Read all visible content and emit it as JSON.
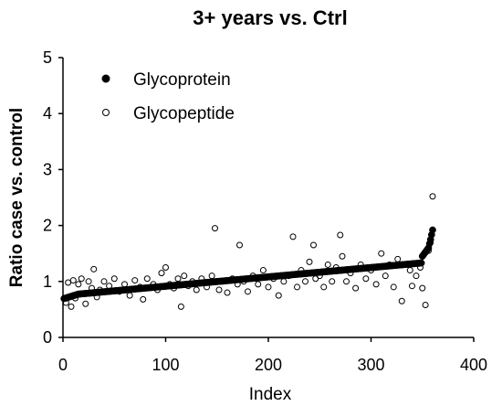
{
  "chart_data": {
    "type": "scatter",
    "title": "3+ years vs. Ctrl",
    "xlabel": "Index",
    "ylabel": "Ratio case vs. control",
    "xlim": [
      0,
      400
    ],
    "ylim": [
      0,
      5
    ],
    "x_ticks": [
      0,
      100,
      200,
      300,
      400
    ],
    "y_ticks": [
      0,
      1,
      2,
      3,
      4,
      5
    ],
    "grid": false,
    "legend_position": "top-left",
    "series": [
      {
        "name": "Glycoprotein",
        "marker": "filled-circle",
        "color": "#000000",
        "n_points": 360,
        "y_start": 0.75,
        "y_end": 1.33,
        "tail": [
          [
            350,
            1.45
          ],
          [
            352,
            1.5
          ],
          [
            354,
            1.55
          ],
          [
            356,
            1.6
          ],
          [
            358,
            1.75
          ],
          [
            360,
            1.92
          ]
        ]
      },
      {
        "name": "Glycopeptide",
        "marker": "open-circle",
        "color": "#000000",
        "points": [
          [
            3,
            0.62
          ],
          [
            5,
            0.98
          ],
          [
            8,
            0.55
          ],
          [
            10,
            1.02
          ],
          [
            12,
            0.7
          ],
          [
            15,
            0.95
          ],
          [
            18,
            1.05
          ],
          [
            20,
            0.78
          ],
          [
            22,
            0.6
          ],
          [
            25,
            1.0
          ],
          [
            28,
            0.88
          ],
          [
            30,
            1.22
          ],
          [
            33,
            0.72
          ],
          [
            36,
            0.85
          ],
          [
            40,
            1.0
          ],
          [
            45,
            0.92
          ],
          [
            50,
            1.05
          ],
          [
            55,
            0.82
          ],
          [
            60,
            0.95
          ],
          [
            65,
            0.75
          ],
          [
            70,
            1.02
          ],
          [
            75,
            0.9
          ],
          [
            78,
            0.68
          ],
          [
            82,
            1.05
          ],
          [
            88,
            0.95
          ],
          [
            92,
            0.85
          ],
          [
            96,
            1.15
          ],
          [
            100,
            1.25
          ],
          [
            104,
            0.95
          ],
          [
            108,
            0.88
          ],
          [
            112,
            1.05
          ],
          [
            115,
            0.55
          ],
          [
            118,
            1.1
          ],
          [
            122,
            0.92
          ],
          [
            126,
            1.0
          ],
          [
            130,
            0.85
          ],
          [
            135,
            1.05
          ],
          [
            140,
            0.9
          ],
          [
            145,
            1.1
          ],
          [
            148,
            1.95
          ],
          [
            152,
            0.85
          ],
          [
            156,
            1.0
          ],
          [
            160,
            0.8
          ],
          [
            165,
            1.05
          ],
          [
            170,
            0.95
          ],
          [
            172,
            1.65
          ],
          [
            176,
            1.0
          ],
          [
            180,
            0.82
          ],
          [
            185,
            1.1
          ],
          [
            190,
            0.95
          ],
          [
            195,
            1.2
          ],
          [
            200,
            0.9
          ],
          [
            205,
            1.05
          ],
          [
            210,
            0.75
          ],
          [
            215,
            1.0
          ],
          [
            220,
            1.1
          ],
          [
            224,
            1.8
          ],
          [
            228,
            0.9
          ],
          [
            232,
            1.2
          ],
          [
            236,
            1.0
          ],
          [
            240,
            1.35
          ],
          [
            244,
            1.65
          ],
          [
            246,
            1.05
          ],
          [
            250,
            1.1
          ],
          [
            254,
            0.9
          ],
          [
            258,
            1.3
          ],
          [
            262,
            1.0
          ],
          [
            266,
            1.25
          ],
          [
            270,
            1.83
          ],
          [
            272,
            1.45
          ],
          [
            276,
            1.0
          ],
          [
            280,
            1.15
          ],
          [
            285,
            0.88
          ],
          [
            290,
            1.3
          ],
          [
            295,
            1.05
          ],
          [
            300,
            1.2
          ],
          [
            305,
            0.95
          ],
          [
            310,
            1.5
          ],
          [
            314,
            1.1
          ],
          [
            318,
            1.3
          ],
          [
            322,
            0.9
          ],
          [
            326,
            1.4
          ],
          [
            330,
            0.65
          ],
          [
            334,
            1.3
          ],
          [
            338,
            1.2
          ],
          [
            340,
            0.92
          ],
          [
            344,
            1.1
          ],
          [
            348,
            1.25
          ],
          [
            350,
            0.88
          ],
          [
            353,
            0.58
          ],
          [
            356,
            1.55
          ],
          [
            358,
            1.7
          ],
          [
            360,
            2.52
          ]
        ]
      }
    ]
  }
}
